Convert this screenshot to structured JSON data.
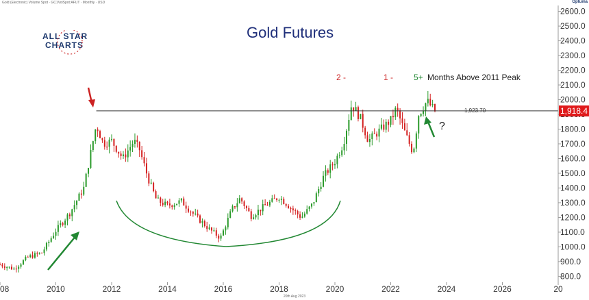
{
  "header": {
    "instrument": "Gold (Electronic) Volume Spot · GC1VolSpot:AFUT · Monthly · USD",
    "brand": "Optuma",
    "date_note": "20th Aug 2023"
  },
  "logo": {
    "line1": "ALL STAR",
    "line2": "CHARTS"
  },
  "annotations": {
    "count_2": "2 -",
    "count_1": "1 -",
    "count_5": "5+",
    "months_label": "Months Above 2011 Peak",
    "question": "?"
  },
  "colors": {
    "up": "#2a9a2a",
    "down": "#d42020",
    "level_line": "#333333",
    "price_tag": "#e0191a",
    "title": "#1f2f7a"
  },
  "chart_data": {
    "type": "candlestick",
    "title": "Gold Futures",
    "x_ticks": [
      "08",
      "2010",
      "2012",
      "2014",
      "2016",
      "2018",
      "2020",
      "2022",
      "2024",
      "2026",
      "20"
    ],
    "y_ticks": [
      "800.0",
      "900.0",
      "1000.0",
      "1100.0",
      "1200.0",
      "1300.0",
      "1400.0",
      "1500.0",
      "1600.0",
      "1700.0",
      "1800.0",
      "1900.0",
      "2000.0",
      "2100.0",
      "2200.0",
      "2300.0",
      "2400.0",
      "2500.0",
      "2600.0"
    ],
    "ylim": [
      760,
      2640
    ],
    "xlim": [
      2008,
      2028
    ],
    "reference_level": {
      "value": 1923.7,
      "label": "1,923.70"
    },
    "last_price": {
      "value": 1918.4,
      "label": "1,918.4"
    },
    "points": [
      [
        2008.0,
        880
      ],
      [
        2008.5,
        850
      ],
      [
        2009.0,
        930
      ],
      [
        2009.5,
        960
      ],
      [
        2010.0,
        1110
      ],
      [
        2010.5,
        1230
      ],
      [
        2011.0,
        1400
      ],
      [
        2011.45,
        1830
      ],
      [
        2011.7,
        1700
      ],
      [
        2012.0,
        1720
      ],
      [
        2012.4,
        1600
      ],
      [
        2012.8,
        1720
      ],
      [
        2013.0,
        1660
      ],
      [
        2013.3,
        1470
      ],
      [
        2013.6,
        1320
      ],
      [
        2014.0,
        1280
      ],
      [
        2014.5,
        1310
      ],
      [
        2015.0,
        1210
      ],
      [
        2015.5,
        1120
      ],
      [
        2015.9,
        1060
      ],
      [
        2016.3,
        1250
      ],
      [
        2016.6,
        1330
      ],
      [
        2017.0,
        1210
      ],
      [
        2017.5,
        1280
      ],
      [
        2018.0,
        1340
      ],
      [
        2018.5,
        1250
      ],
      [
        2018.8,
        1200
      ],
      [
        2019.2,
        1290
      ],
      [
        2019.6,
        1480
      ],
      [
        2020.0,
        1580
      ],
      [
        2020.3,
        1700
      ],
      [
        2020.6,
        1970
      ],
      [
        2020.9,
        1880
      ],
      [
        2021.2,
        1720
      ],
      [
        2021.6,
        1790
      ],
      [
        2022.0,
        1860
      ],
      [
        2022.2,
        1940
      ],
      [
        2022.5,
        1780
      ],
      [
        2022.8,
        1640
      ],
      [
        2023.0,
        1900
      ],
      [
        2023.3,
        1990
      ],
      [
        2023.6,
        1918
      ]
    ]
  }
}
